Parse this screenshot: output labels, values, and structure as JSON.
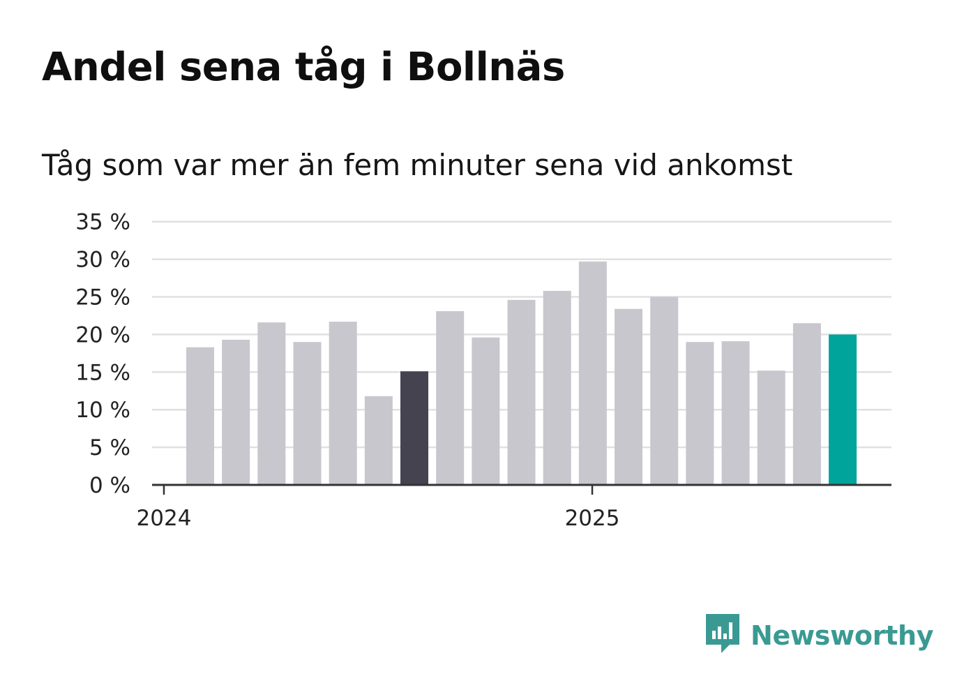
{
  "title": "Andel sena tåg i Bollnäs",
  "subtitle": "Tåg som var mer än fem minuter sena vid ankomst",
  "brand": {
    "name": "Newsworthy",
    "icon": "newsworthy-logo-icon"
  },
  "colors": {
    "bar_default": "#c8c7ce",
    "bar_highlight_previous_year": "#45434f",
    "bar_latest": "#00a49a",
    "grid": "#e0e0e0",
    "axis": "#333333",
    "brand": "#3a9a93"
  },
  "chart_data": {
    "type": "bar",
    "title": "Andel sena tåg i Bollnäs",
    "subtitle": "Tåg som var mer än fem minuter sena vid ankomst",
    "xlabel": "",
    "ylabel": "",
    "x_tick_labels": [
      "2024",
      "2025"
    ],
    "y_ticks": [
      0,
      5,
      10,
      15,
      20,
      25,
      30,
      35
    ],
    "y_tick_labels": [
      "0 %",
      "5 %",
      "10 %",
      "15 %",
      "20 %",
      "25 %",
      "30 %",
      "35 %"
    ],
    "ylim": [
      0,
      35
    ],
    "grid": true,
    "legend": "none",
    "unit": "%",
    "values": [
      18.3,
      19.3,
      21.6,
      19.0,
      21.7,
      11.8,
      15.1,
      23.1,
      19.6,
      24.6,
      25.8,
      29.7,
      23.4,
      25.0,
      19.0,
      19.1,
      15.2,
      21.5,
      20.0
    ],
    "highlight": {
      "dark_index": 6,
      "accent_index": 18
    }
  }
}
